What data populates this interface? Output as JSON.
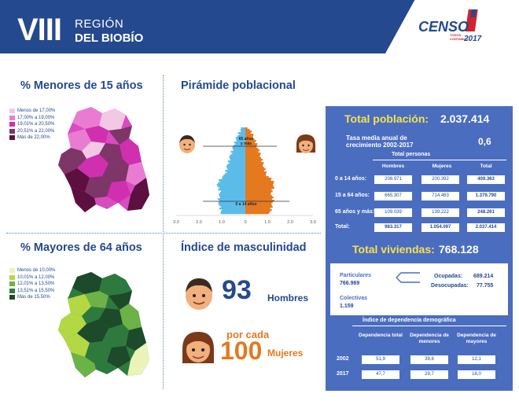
{
  "header": {
    "roman": "VIII",
    "region_line1": "REGIÓN",
    "region_line2": "DEL BIOBÍO",
    "logo_word": "CENSO",
    "logo_small1": "TODOS",
    "logo_small2": "CONTAMOS",
    "logo_year": "2017",
    "colors": {
      "bar": "#24498f",
      "logo_red": "#d2232a"
    }
  },
  "sections": {
    "menores": "% Menores de 15 años",
    "piramide": "Pirámide poblacional",
    "mayores": "% Mayores de 64 años",
    "masculinidad": "Índice de masculinidad"
  },
  "legend_menores": [
    {
      "label": "Menos de 17,00%",
      "color": "#f3c8e4"
    },
    {
      "label": "17,00% a 19,00%",
      "color": "#e97cd2"
    },
    {
      "label": "19,01% a 20,50%",
      "color": "#d02fb0"
    },
    {
      "label": "20,51% a 22,00%",
      "color": "#7e3568"
    },
    {
      "label": "Más de 22,00%",
      "color": "#5c1040"
    }
  ],
  "legend_mayores": [
    {
      "label": "Menos de 10,00%",
      "color": "#ecf3b8"
    },
    {
      "label": "10,01% a 12,00%",
      "color": "#b3d843"
    },
    {
      "label": "12,01% a 13,50%",
      "color": "#6cb246"
    },
    {
      "label": "13,51% a 15,50%",
      "color": "#2e7a3e"
    },
    {
      "label": "Más de 15,50%",
      "color": "#1c4a2a"
    }
  ],
  "pyramid": {
    "label_top": "65 años",
    "label_top2": "y más",
    "label_bottom": "0 a 14 años",
    "axis_ticks": [
      "3.0",
      "2.0",
      "1.0",
      "0",
      "1.0",
      "2.0",
      "3.0"
    ],
    "colors": {
      "men": "#5bbcea",
      "women": "#e4791f"
    }
  },
  "masculinidad": {
    "value": "93",
    "hombres": "Hombres",
    "por_cada": "por cada",
    "base": "100",
    "mujeres": "Mujeres"
  },
  "panel": {
    "total_label": "Total población:",
    "total_value": "2.037.414",
    "tasa_label": "Tasa media anual de crecimiento 2002-2017",
    "tasa_value": "0,6",
    "personas_title": "Total personas",
    "columns": [
      "Hombres",
      "Mujeres",
      "Total"
    ],
    "rows": [
      {
        "label": "0 a 14 años:",
        "values": [
          "208.971",
          "200.392",
          "409.363"
        ]
      },
      {
        "label": "15 a 64 años:",
        "values": [
          "665.307",
          "714.483",
          "1.379.790"
        ]
      },
      {
        "label": "65 años y más:",
        "values": [
          "109.039",
          "139.222",
          "248.261"
        ]
      },
      {
        "label": "Total:",
        "values": [
          "983.317",
          "1.054.097",
          "2.037.414"
        ]
      }
    ],
    "viviendas_label": "Total viviendas:",
    "viviendas_value": "768.128",
    "particulares_label": "Particulares",
    "particulares_value": "766.969",
    "ocupadas_label": "Ocupadas:",
    "ocupadas_value": "689.214",
    "desocupadas_label": "Desocupadas:",
    "desocupadas_value": "77.755",
    "colectivas_label": "Colectivas",
    "colectivas_value": "1.159",
    "dependencia_title": "Índice de dependencia demográfica",
    "dep_columns": [
      "Dependencia total",
      "Dependencia de menores",
      "Dependencia de mayores"
    ],
    "dep_rows": [
      {
        "year": "2002",
        "values": [
          "51,9",
          "39,8",
          "12,1"
        ]
      },
      {
        "year": "2017",
        "values": [
          "47,7",
          "29,7",
          "18,0"
        ]
      }
    ],
    "colors": {
      "background": "#4b6dc0",
      "highlight": "#f7e248"
    }
  }
}
